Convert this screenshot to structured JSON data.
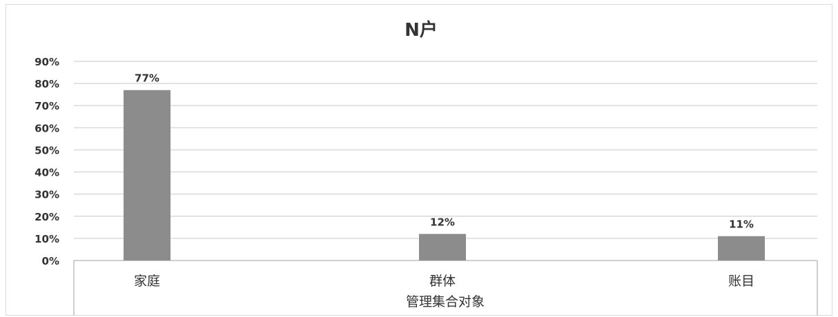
{
  "chart_data": {
    "type": "bar",
    "title": "N户",
    "xlabel": "管理集合对象",
    "ylabel": "",
    "categories": [
      "家庭",
      "群体",
      "账目"
    ],
    "values": [
      77,
      12,
      11
    ],
    "data_labels": [
      "77%",
      "12%",
      "11%"
    ],
    "yticks": [
      "0%",
      "10%",
      "20%",
      "30%",
      "40%",
      "50%",
      "60%",
      "70%",
      "80%",
      "90%"
    ],
    "ylim": [
      0,
      90
    ],
    "grid": true,
    "legend": "none",
    "colors": {
      "bar": "#8c8c8c",
      "grid": "#d9d9d9",
      "axis": "#bfbfbf",
      "text": "#333333"
    }
  }
}
